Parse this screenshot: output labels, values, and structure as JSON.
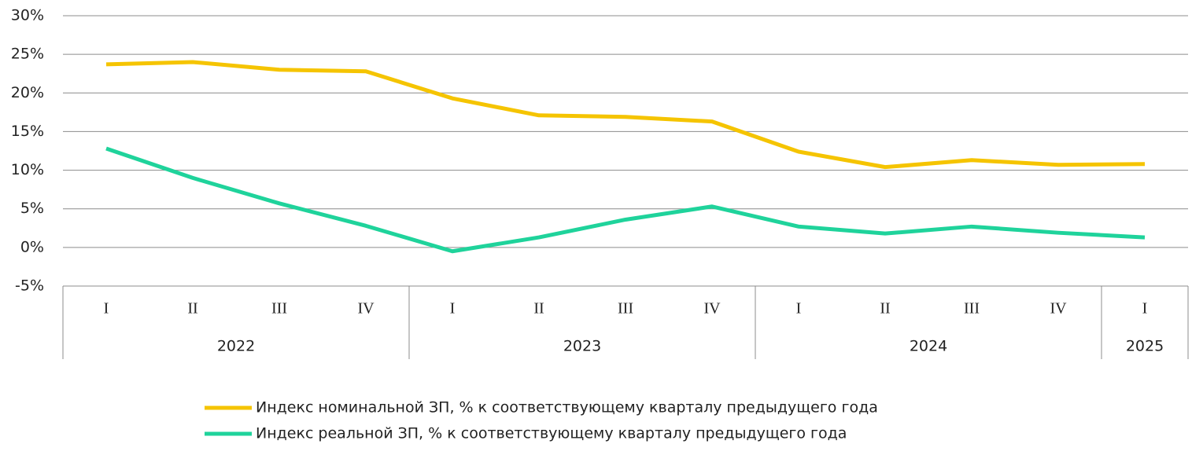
{
  "chart_data": {
    "type": "line",
    "categories": [
      "I",
      "II",
      "III",
      "IV",
      "I",
      "II",
      "III",
      "IV",
      "I",
      "II",
      "III",
      "IV",
      "I"
    ],
    "groups": [
      {
        "name": "2022",
        "size": 4
      },
      {
        "name": "2023",
        "size": 4
      },
      {
        "name": "2024",
        "size": 4
      },
      {
        "name": "2025",
        "size": 1
      }
    ],
    "series": [
      {
        "name": "Индекс номинальной ЗП, % к соответствующему кварталу предыдущего года",
        "color": "#f5c400",
        "values": [
          23.7,
          24.0,
          23.0,
          22.8,
          19.3,
          17.1,
          16.9,
          16.3,
          12.4,
          10.4,
          11.3,
          10.7,
          10.8
        ]
      },
      {
        "name": "Индекс реальной ЗП, % к соответствующему кварталу предыдущего года",
        "color": "#1fd39b",
        "values": [
          12.8,
          9.0,
          5.7,
          2.8,
          -0.5,
          1.3,
          3.6,
          5.3,
          2.7,
          1.8,
          2.7,
          1.9,
          1.3
        ]
      }
    ],
    "ylim": [
      -5,
      30
    ],
    "yticks": [
      {
        "value": -5,
        "label": "-5%"
      },
      {
        "value": 0,
        "label": "0%"
      },
      {
        "value": 5,
        "label": "5%"
      },
      {
        "value": 10,
        "label": "10%"
      },
      {
        "value": 15,
        "label": "15%"
      },
      {
        "value": 20,
        "label": "20%"
      },
      {
        "value": 25,
        "label": "25%"
      },
      {
        "value": 30,
        "label": "30%"
      }
    ],
    "grid": true,
    "legend": "bottom"
  }
}
